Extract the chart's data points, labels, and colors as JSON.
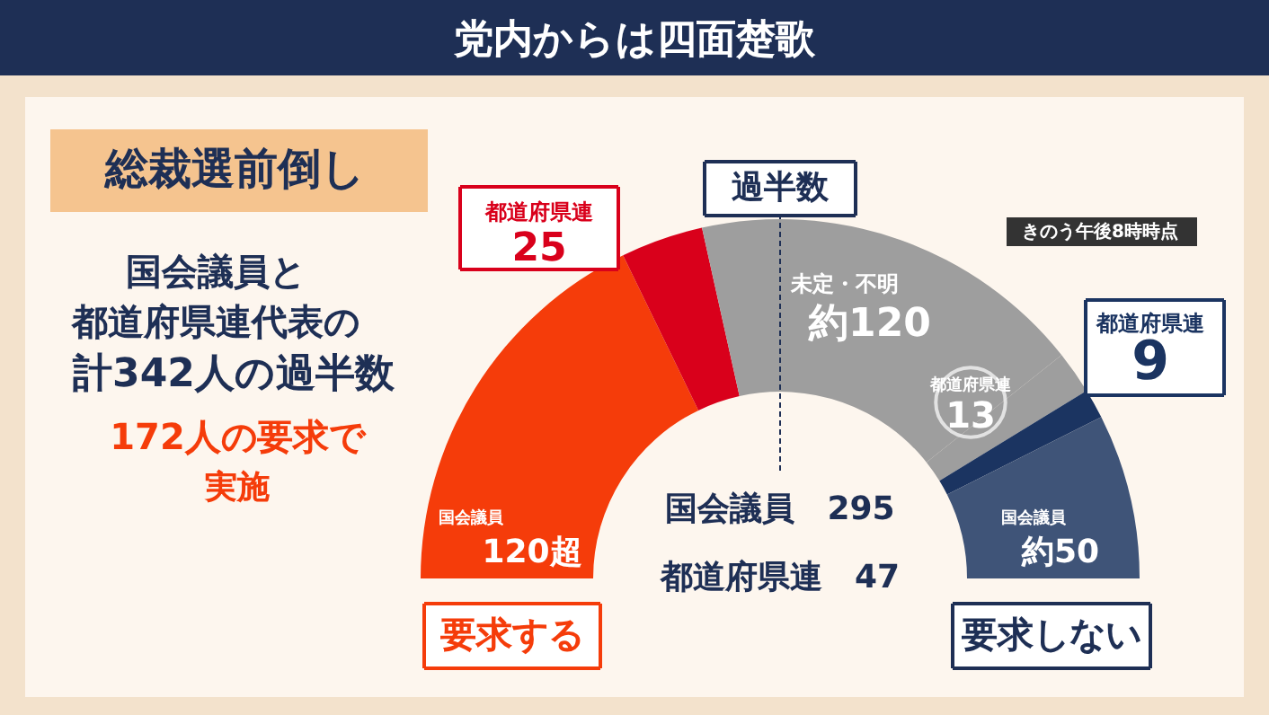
{
  "chart_data": {
    "type": "donut",
    "title": "党内からは四面楚歌",
    "categories": [
      "国会議員",
      "都道府県連",
      "未定・不明",
      "都道府県連",
      "都道府県連",
      "国会議員"
    ],
    "values": [
      120,
      25,
      120,
      13,
      9,
      50
    ],
    "value_labels": [
      "120超",
      "25",
      "約120",
      "13",
      "9",
      "約50"
    ],
    "colors": [
      "#f53c0a",
      "#d9001b",
      "#9e9e9e",
      "#9e9e9e",
      "#1b3461",
      "#3f5478"
    ],
    "ref_lines": [
      {
        "axis": "x",
        "label": "過半数"
      }
    ],
    "annotations": [
      "総裁選前倒し",
      "国会議員と",
      "都道府県連代表の",
      "計342人の過半数",
      "172人の要求で",
      "実施",
      "きのう午後8時時点",
      "国会議員　295",
      "都道府県連　47",
      "要求する",
      "要求しない"
    ]
  }
}
